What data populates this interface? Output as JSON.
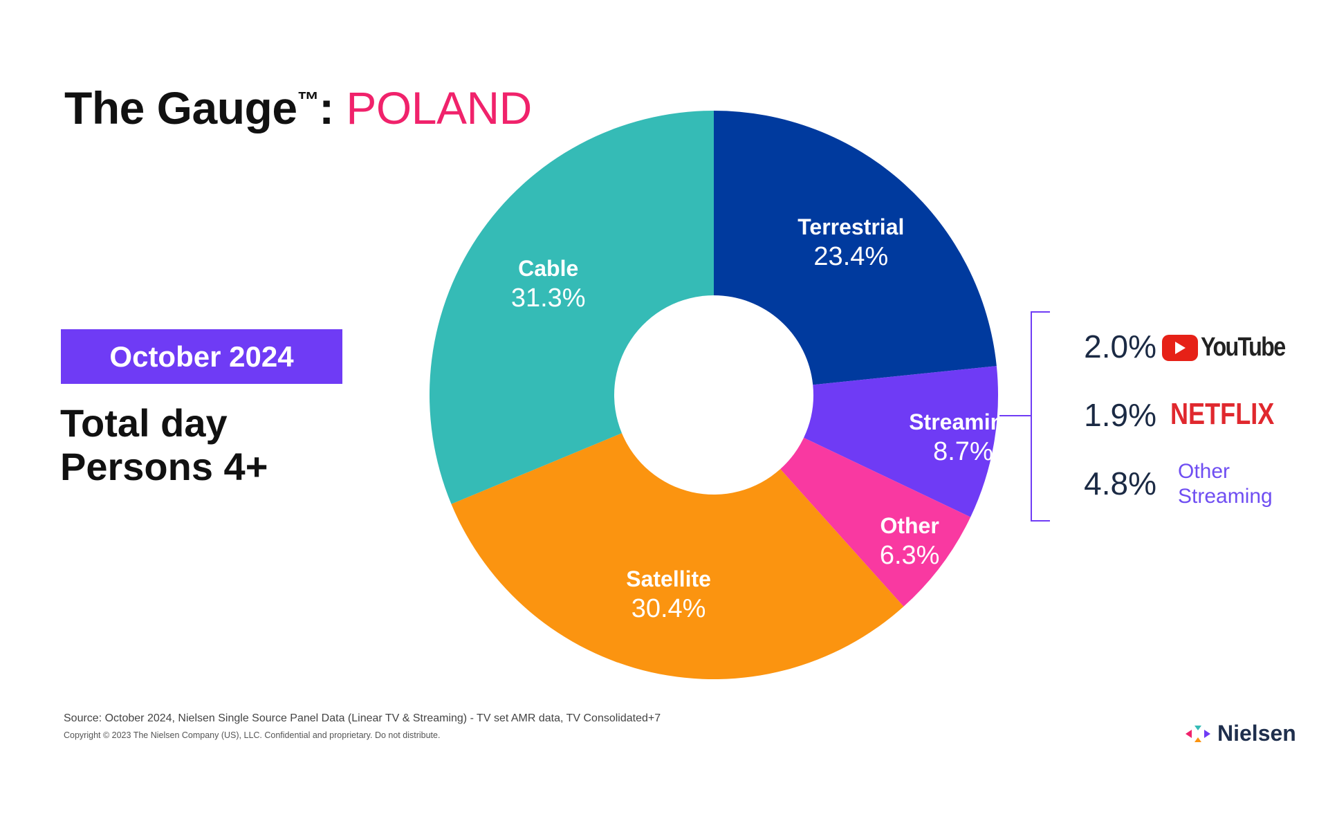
{
  "header": {
    "title_prefix": "The Gauge",
    "trademark": "™",
    "separator": ":",
    "country": "POLAND",
    "country_color": "#F0226B"
  },
  "period_badge": {
    "label": "October 2024",
    "color": "#6F3BF5"
  },
  "subtitle": {
    "line1": "Total day",
    "line2": "Persons 4+"
  },
  "chart_data": {
    "type": "pie",
    "donut": true,
    "start": "12 o'clock",
    "direction": "clockwise",
    "slices": [
      {
        "name": "Terrestrial",
        "value": 23.4,
        "label": "23.4%",
        "color": "#003A9E"
      },
      {
        "name": "Streaming",
        "value": 8.7,
        "label": "8.7%",
        "color": "#6F3BF5"
      },
      {
        "name": "Other",
        "value": 6.3,
        "label": "6.3%",
        "color": "#F939A1"
      },
      {
        "name": "Satellite",
        "value": 30.4,
        "label": "30.4%",
        "color": "#FB9410"
      },
      {
        "name": "Cable",
        "value": 31.3,
        "label": "31.3%",
        "color": "#35BBB6"
      }
    ],
    "streaming_breakdown": [
      {
        "name": "YouTube",
        "value": 2.0,
        "label": "2.0%",
        "logo": "youtube-logo"
      },
      {
        "name": "NETFLIX",
        "value": 1.9,
        "label": "1.9%",
        "logo": "netflix-logo"
      },
      {
        "name": "Other Streaming",
        "value": 4.8,
        "label": "4.8%",
        "line1": "Other",
        "line2": "Streaming"
      }
    ]
  },
  "footer": {
    "source": "Source: October 2024, Nielsen Single Source Panel Data (Linear TV & Streaming) - TV set AMR data, TV Consolidated+7",
    "copyright": "Copyright © 2023 The Nielsen Company (US), LLC. Confidential and proprietary. Do not distribute.",
    "brand": "Nielsen"
  }
}
